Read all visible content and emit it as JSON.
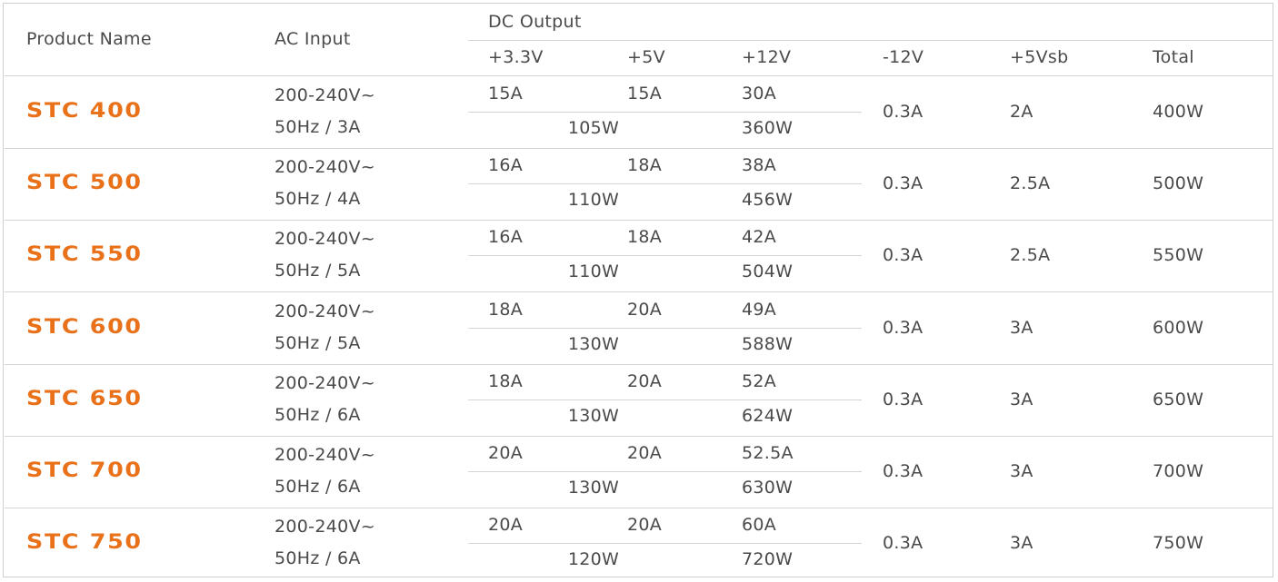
{
  "table": {
    "headers": {
      "product_name": "Product Name",
      "ac_input": "AC Input",
      "dc_output": "DC Output",
      "columns": [
        "+3.3V",
        "+5V",
        "+12V",
        "-12V",
        "+5Vsb",
        "Total"
      ]
    },
    "rows": [
      {
        "name": "STC 400",
        "ac_input": [
          "200-240V~",
          "50Hz / 3A"
        ],
        "plus_3_3v": "15A",
        "plus_5v": "15A",
        "plus_12v": "30A",
        "watts_3_3v_5v": "105W",
        "watts_12v": "360W",
        "minus_12v": "0.3A",
        "plus_5vsb": "2A",
        "total": "400W"
      },
      {
        "name": "STC 500",
        "ac_input": [
          "200-240V~",
          "50Hz / 4A"
        ],
        "plus_3_3v": "16A",
        "plus_5v": "18A",
        "plus_12v": "38A",
        "watts_3_3v_5v": "110W",
        "watts_12v": "456W",
        "minus_12v": "0.3A",
        "plus_5vsb": "2.5A",
        "total": "500W"
      },
      {
        "name": "STC 550",
        "ac_input": [
          "200-240V~",
          "50Hz / 5A"
        ],
        "plus_3_3v": "16A",
        "plus_5v": "18A",
        "plus_12v": "42A",
        "watts_3_3v_5v": "110W",
        "watts_12v": "504W",
        "minus_12v": "0.3A",
        "plus_5vsb": "2.5A",
        "total": "550W"
      },
      {
        "name": "STC 600",
        "ac_input": [
          "200-240V~",
          "50Hz / 5A"
        ],
        "plus_3_3v": "18A",
        "plus_5v": "20A",
        "plus_12v": "49A",
        "watts_3_3v_5v": "130W",
        "watts_12v": "588W",
        "minus_12v": "0.3A",
        "plus_5vsb": "3A",
        "total": "600W"
      },
      {
        "name": "STC 650",
        "ac_input": [
          "200-240V~",
          "50Hz / 6A"
        ],
        "plus_3_3v": "18A",
        "plus_5v": "20A",
        "plus_12v": "52A",
        "watts_3_3v_5v": "130W",
        "watts_12v": "624W",
        "minus_12v": "0.3A",
        "plus_5vsb": "3A",
        "total": "650W"
      },
      {
        "name": "STC 700",
        "ac_input": [
          "200-240V~",
          "50Hz / 6A"
        ],
        "plus_3_3v": "20A",
        "plus_5v": "20A",
        "plus_12v": "52.5A",
        "watts_3_3v_5v": "130W",
        "watts_12v": "630W",
        "minus_12v": "0.3A",
        "plus_5vsb": "3A",
        "total": "700W"
      },
      {
        "name": "STC 750",
        "ac_input": [
          "200-240V~",
          "50Hz / 6A"
        ],
        "plus_3_3v": "20A",
        "plus_5v": "20A",
        "plus_12v": "60A",
        "watts_3_3v_5v": "120W",
        "watts_12v": "720W",
        "minus_12v": "0.3A",
        "plus_5vsb": "3A",
        "total": "750W"
      }
    ]
  }
}
